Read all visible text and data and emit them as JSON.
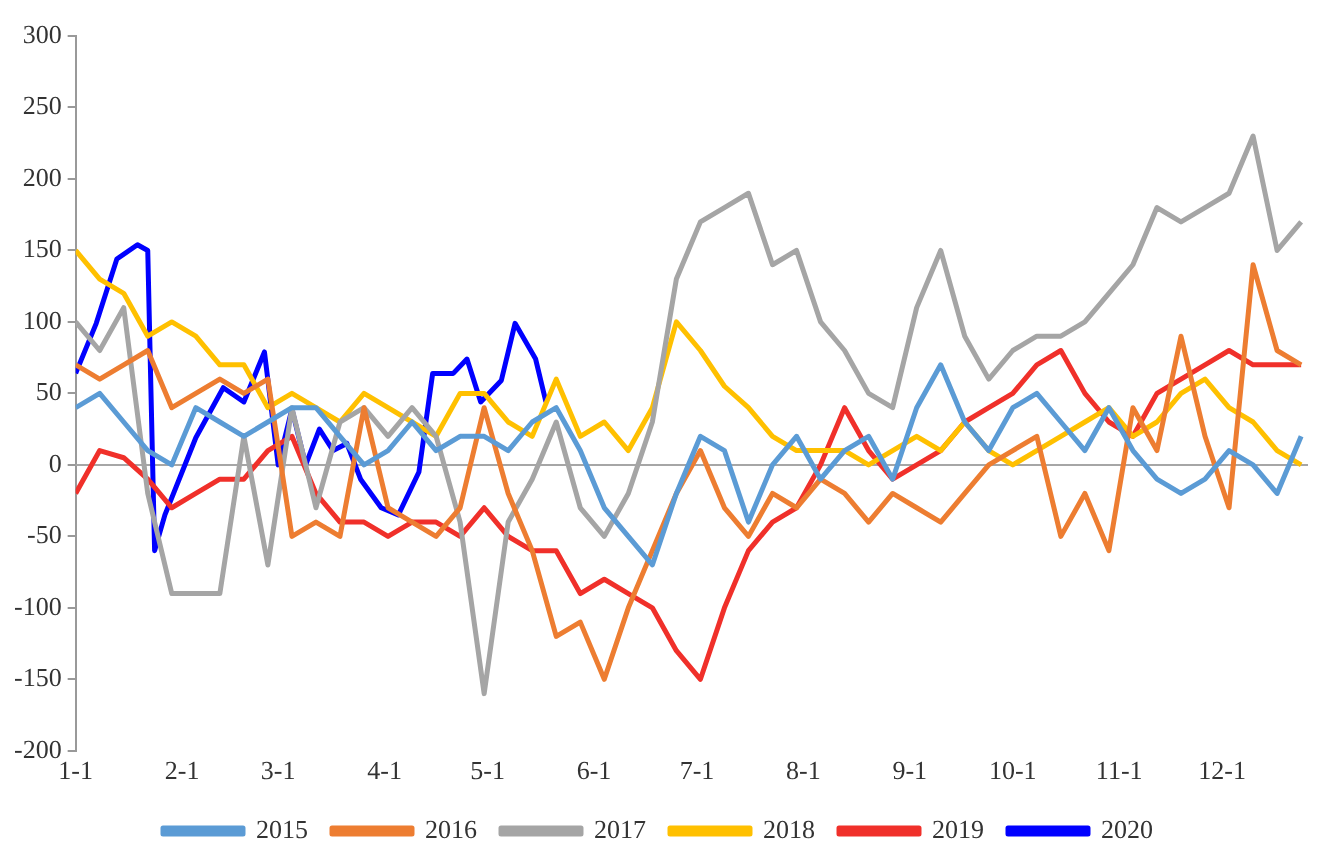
{
  "chart_data": {
    "type": "line",
    "x": [
      "--01-01",
      "--01-08",
      "--01-15",
      "--01-22",
      "--01-29",
      "--02-05",
      "--02-12",
      "--02-19",
      "--02-26",
      "--03-05",
      "--03-12",
      "--03-19",
      "--03-26",
      "--04-02",
      "--04-09",
      "--04-16",
      "--04-23",
      "--04-30",
      "--05-07",
      "--05-14",
      "--05-21",
      "--05-28",
      "--06-04",
      "--06-11",
      "--06-18",
      "--06-25",
      "--07-02",
      "--07-09",
      "--07-16",
      "--07-23",
      "--07-30",
      "--08-06",
      "--08-13",
      "--08-20",
      "--08-27",
      "--09-03",
      "--09-10",
      "--09-17",
      "--09-24",
      "--10-01",
      "--10-08",
      "--10-15",
      "--10-22",
      "--10-29",
      "--11-05",
      "--11-12",
      "--11-19",
      "--11-26",
      "--12-03",
      "--12-10",
      "--12-17",
      "--12-24"
    ],
    "series": [
      {
        "name": "2015",
        "color": "#5b9bd5",
        "values": [
          40,
          50,
          30,
          10,
          0,
          40,
          30,
          20,
          30,
          40,
          40,
          20,
          0,
          10,
          30,
          10,
          20,
          20,
          10,
          30,
          40,
          10,
          -30,
          -50,
          -70,
          -20,
          20,
          10,
          -40,
          0,
          20,
          -10,
          10,
          20,
          -10,
          40,
          70,
          30,
          10,
          40,
          50,
          30,
          10,
          40,
          10,
          -10,
          -20,
          -10,
          10,
          0,
          -20,
          20
        ]
      },
      {
        "name": "2016",
        "color": "#ed7d31",
        "values": [
          70,
          60,
          70,
          80,
          40,
          50,
          60,
          50,
          60,
          -50,
          -40,
          -50,
          40,
          -30,
          -40,
          -50,
          -30,
          40,
          -20,
          -60,
          -120,
          -110,
          -150,
          -100,
          -60,
          -20,
          10,
          -30,
          -50,
          -20,
          -30,
          -10,
          -20,
          -40,
          -20,
          -30,
          -40,
          -20,
          0,
          10,
          20,
          -50,
          -20,
          -60,
          40,
          10,
          90,
          20,
          -30,
          140,
          80,
          70
        ]
      },
      {
        "name": "2017",
        "color": "#a5a5a5",
        "values": [
          100,
          80,
          110,
          -20,
          -90,
          -90,
          -90,
          20,
          -70,
          40,
          -30,
          30,
          40,
          20,
          40,
          20,
          -40,
          -160,
          -40,
          -10,
          30,
          -30,
          -50,
          -20,
          30,
          130,
          170,
          180,
          190,
          140,
          150,
          100,
          80,
          50,
          40,
          110,
          150,
          90,
          60,
          80,
          90,
          90,
          100,
          120,
          140,
          180,
          170,
          180,
          190,
          230,
          150,
          170
        ]
      },
      {
        "name": "2018",
        "color": "#ffc000",
        "values": [
          150,
          130,
          120,
          90,
          100,
          90,
          70,
          70,
          40,
          50,
          40,
          30,
          50,
          40,
          30,
          20,
          50,
          50,
          30,
          20,
          60,
          20,
          30,
          10,
          40,
          100,
          80,
          55,
          40,
          20,
          10,
          10,
          10,
          0,
          10,
          20,
          10,
          30,
          10,
          0,
          10,
          20,
          30,
          40,
          20,
          30,
          50,
          60,
          40,
          30,
          10,
          0
        ]
      },
      {
        "name": "2019",
        "color": "#f0302a",
        "values": [
          -20,
          10,
          5,
          -10,
          -30,
          -20,
          -10,
          -10,
          10,
          20,
          -20,
          -40,
          -40,
          -50,
          -40,
          -40,
          -50,
          -30,
          -50,
          -60,
          -60,
          -90,
          -80,
          -90,
          -100,
          -130,
          -150,
          -100,
          -60,
          -40,
          -30,
          0,
          40,
          10,
          -10,
          0,
          10,
          30,
          40,
          50,
          70,
          80,
          50,
          30,
          20,
          50,
          60,
          70,
          80,
          70,
          70,
          70
        ]
      },
      {
        "name": "2020",
        "color": "#0000ff",
        "x": [
          "--01-01",
          "--01-07",
          "--01-13",
          "--01-19",
          "--01-22",
          "--01-24",
          "--01-27",
          "--02-05",
          "--02-13",
          "--02-19",
          "--02-25",
          "--03-01",
          "--03-05",
          "--03-09",
          "--03-13",
          "--03-17",
          "--03-21",
          "--03-25",
          "--03-31",
          "--04-05",
          "--04-11",
          "--04-15",
          "--04-21",
          "--04-25",
          "--04-29",
          "--05-05",
          "--05-09",
          "--05-15",
          "--05-18"
        ],
        "values": [
          64,
          99,
          144,
          154,
          150,
          -60,
          -35,
          19,
          54,
          44,
          79,
          0,
          39,
          0,
          25,
          10,
          15,
          -10,
          -30,
          -35,
          -5,
          64,
          64,
          74,
          44,
          59,
          99,
          74,
          44
        ]
      }
    ],
    "xlim": [
      "--01-01",
      "--12-26"
    ],
    "xticks": [
      {
        "value": "--01-01",
        "label": "1-1"
      },
      {
        "value": "--02-01",
        "label": "2-1"
      },
      {
        "value": "--03-01",
        "label": "3-1"
      },
      {
        "value": "--04-01",
        "label": "4-1"
      },
      {
        "value": "--05-01",
        "label": "5-1"
      },
      {
        "value": "--06-01",
        "label": "6-1"
      },
      {
        "value": "--07-01",
        "label": "7-1"
      },
      {
        "value": "--08-01",
        "label": "8-1"
      },
      {
        "value": "--09-01",
        "label": "9-1"
      },
      {
        "value": "--10-01",
        "label": "10-1"
      },
      {
        "value": "--11-01",
        "label": "11-1"
      },
      {
        "value": "--12-01",
        "label": "12-1"
      }
    ],
    "ylim": [
      -200,
      300
    ],
    "yticks": [
      -200,
      -150,
      -100,
      -50,
      0,
      50,
      100,
      150,
      200,
      250,
      300
    ],
    "ref_lines": [
      {
        "axis": "y",
        "value": 0,
        "color": "#a6a6a6"
      }
    ],
    "grid": false,
    "legend": "bottom",
    "marker": "none",
    "line_style": "solid"
  }
}
